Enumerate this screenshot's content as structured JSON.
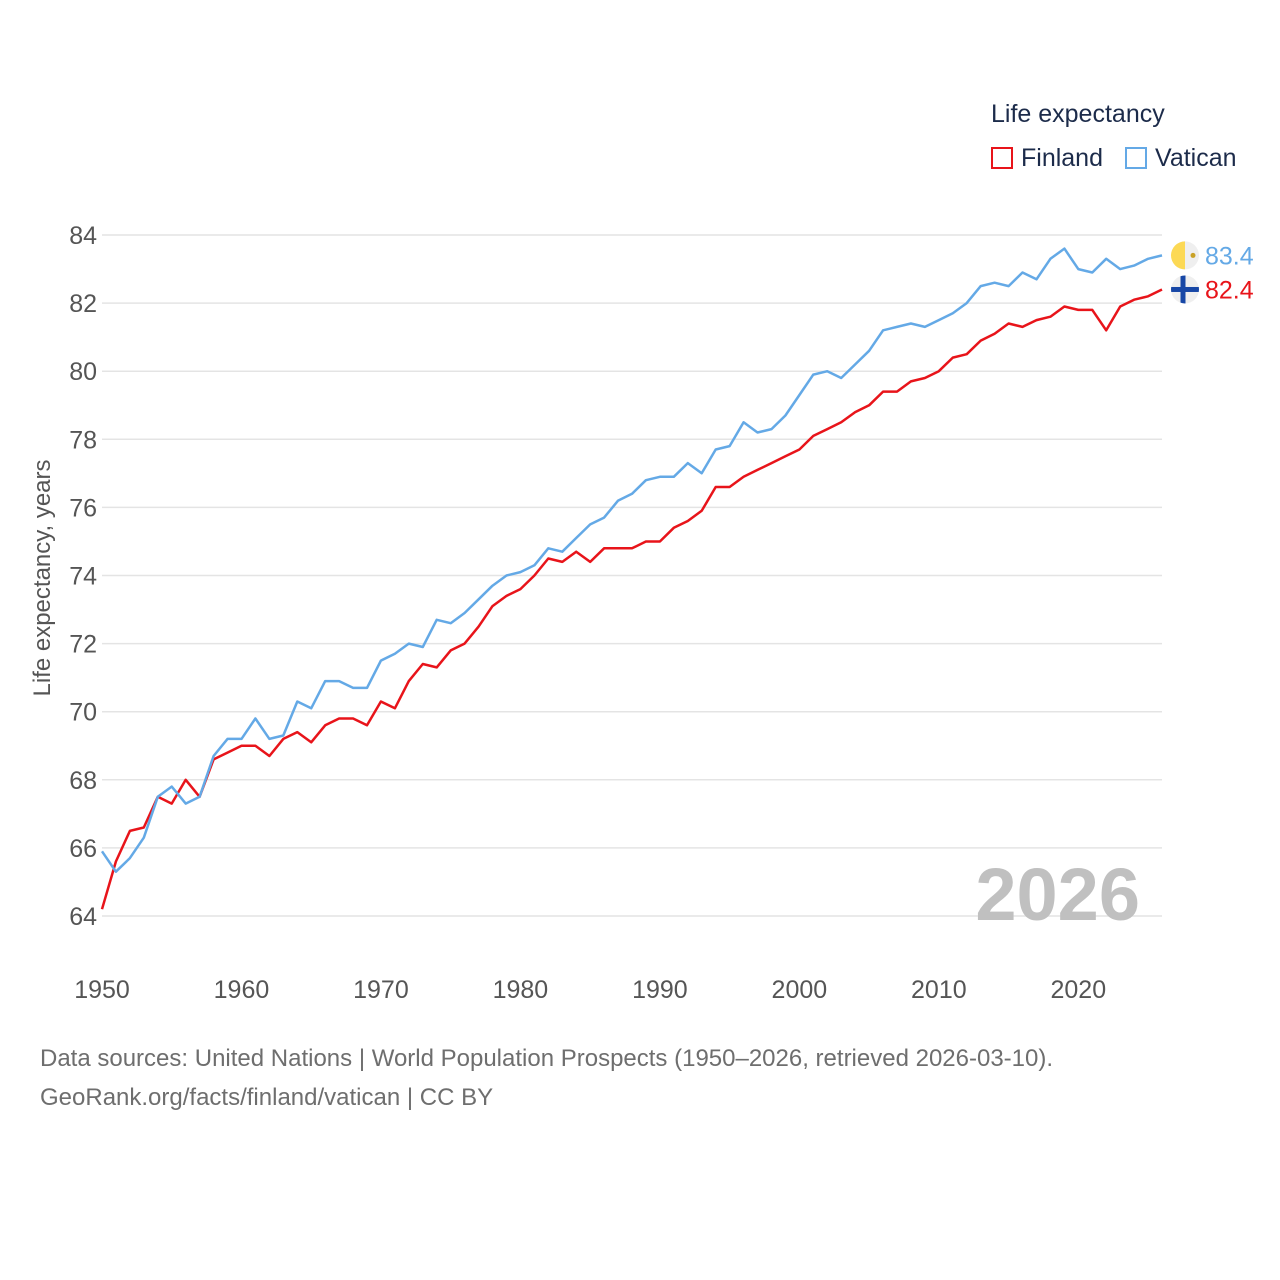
{
  "legend": {
    "title": "Life expectancy",
    "items": [
      {
        "label": "Finland",
        "color": "#e8141a"
      },
      {
        "label": "Vatican",
        "color": "#64a9e6"
      }
    ]
  },
  "footer": {
    "line1": "Data sources: United Nations | World Population Prospects (1950–2026, retrieved 2026-03-10).",
    "line2": "GeoRank.org/facts/finland/vatican | CC BY"
  },
  "chart_data": {
    "type": "line",
    "title": "Life expectancy",
    "xlabel": "",
    "ylabel": "Life expectancy, years",
    "xlim": [
      1950,
      2026
    ],
    "ylim": [
      64,
      84
    ],
    "x_ticks": [
      "1950",
      "1960",
      "1970",
      "1980",
      "1990",
      "2000",
      "2010",
      "2020"
    ],
    "y_ticks": [
      "64",
      "66",
      "68",
      "70",
      "72",
      "74",
      "76",
      "78",
      "80",
      "82",
      "84"
    ],
    "year_watermark": "2026",
    "grid": true,
    "legend_position": "top-right",
    "x": [
      1950,
      1951,
      1952,
      1953,
      1954,
      1955,
      1956,
      1957,
      1958,
      1959,
      1960,
      1961,
      1962,
      1963,
      1964,
      1965,
      1966,
      1967,
      1968,
      1969,
      1970,
      1971,
      1972,
      1973,
      1974,
      1975,
      1976,
      1977,
      1978,
      1979,
      1980,
      1981,
      1982,
      1983,
      1984,
      1985,
      1986,
      1987,
      1988,
      1989,
      1990,
      1991,
      1992,
      1993,
      1994,
      1995,
      1996,
      1997,
      1998,
      1999,
      2000,
      2001,
      2002,
      2003,
      2004,
      2005,
      2006,
      2007,
      2008,
      2009,
      2010,
      2011,
      2012,
      2013,
      2014,
      2015,
      2016,
      2017,
      2018,
      2019,
      2020,
      2021,
      2022,
      2023,
      2024,
      2025,
      2026
    ],
    "series": [
      {
        "name": "Finland",
        "color": "#e8141a",
        "end_label": "82.4",
        "values": [
          64.2,
          65.6,
          66.5,
          66.6,
          67.5,
          67.3,
          68.0,
          67.5,
          68.6,
          68.8,
          69.0,
          69.0,
          68.7,
          69.2,
          69.4,
          69.1,
          69.6,
          69.8,
          69.8,
          69.6,
          70.3,
          70.1,
          70.9,
          71.4,
          71.3,
          71.8,
          72.0,
          72.5,
          73.1,
          73.4,
          73.6,
          74.0,
          74.5,
          74.4,
          74.7,
          74.4,
          74.8,
          74.8,
          74.8,
          75.0,
          75.0,
          75.4,
          75.6,
          75.9,
          76.6,
          76.6,
          76.9,
          77.1,
          77.3,
          77.5,
          77.7,
          78.1,
          78.3,
          78.5,
          78.8,
          79.0,
          79.4,
          79.4,
          79.7,
          79.8,
          80.0,
          80.4,
          80.5,
          80.9,
          81.1,
          81.4,
          81.3,
          81.5,
          81.6,
          81.9,
          81.8,
          81.8,
          81.2,
          81.9,
          82.1,
          82.2,
          82.4
        ]
      },
      {
        "name": "Vatican",
        "color": "#64a9e6",
        "end_label": "83.4",
        "values": [
          65.9,
          65.3,
          65.7,
          66.3,
          67.5,
          67.8,
          67.3,
          67.5,
          68.7,
          69.2,
          69.2,
          69.8,
          69.2,
          69.3,
          70.3,
          70.1,
          70.9,
          70.9,
          70.7,
          70.7,
          71.5,
          71.7,
          72.0,
          71.9,
          72.7,
          72.6,
          72.9,
          73.3,
          73.7,
          74.0,
          74.1,
          74.3,
          74.8,
          74.7,
          75.1,
          75.5,
          75.7,
          76.2,
          76.4,
          76.8,
          76.9,
          76.9,
          77.3,
          77.0,
          77.7,
          77.8,
          78.5,
          78.2,
          78.3,
          78.7,
          79.3,
          79.9,
          80.0,
          79.8,
          80.2,
          80.6,
          81.2,
          81.3,
          81.4,
          81.3,
          81.5,
          81.7,
          82.0,
          82.5,
          82.6,
          82.5,
          82.9,
          82.7,
          83.3,
          83.6,
          83.0,
          82.9,
          83.3,
          83.0,
          83.1,
          83.3,
          83.4
        ]
      }
    ]
  }
}
